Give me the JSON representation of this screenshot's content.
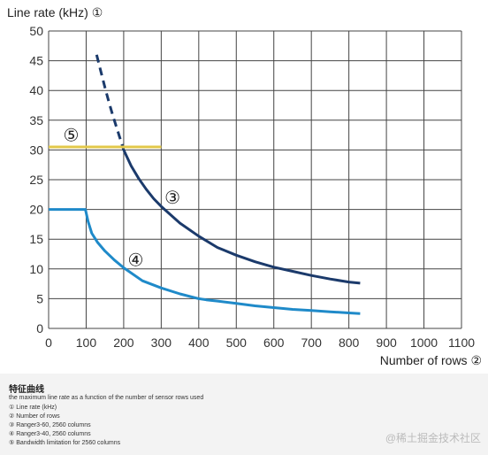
{
  "chart_data": {
    "type": "line",
    "title": "",
    "ylabel": "Line rate (kHz)",
    "ylabel_marker": "①",
    "xlabel": "Number of rows",
    "xlabel_marker": "②",
    "xlim": [
      0,
      1100
    ],
    "ylim": [
      0,
      50
    ],
    "x_ticks": [
      0,
      100,
      200,
      300,
      400,
      500,
      600,
      700,
      800,
      900,
      1000,
      1100
    ],
    "y_ticks": [
      0,
      5,
      10,
      15,
      20,
      25,
      30,
      35,
      40,
      45,
      50
    ],
    "grid": true,
    "series": [
      {
        "name": "③",
        "color": "#1b3a6b",
        "dashed_segment": {
          "x": [
            128,
            140,
            150,
            160,
            170,
            180,
            190,
            200
          ],
          "y": [
            46,
            43,
            40.5,
            38.2,
            36,
            34,
            32,
            30
          ]
        },
        "x": [
          200,
          220,
          240,
          260,
          280,
          300,
          350,
          400,
          450,
          500,
          550,
          600,
          650,
          700,
          750,
          800,
          830
        ],
        "y": [
          30,
          27.3,
          25.2,
          23.4,
          21.8,
          20.5,
          17.7,
          15.5,
          13.6,
          12.3,
          11.2,
          10.3,
          9.6,
          8.9,
          8.3,
          7.8,
          7.6
        ],
        "label_at": [
          330,
          22
        ]
      },
      {
        "name": "④",
        "color": "#1f8ac9",
        "x": [
          0,
          98,
          105,
          115,
          130,
          150,
          175,
          200,
          250,
          300,
          350,
          400,
          420,
          450,
          500,
          550,
          600,
          650,
          700,
          750,
          800,
          830
        ],
        "y": [
          20,
          20,
          18,
          16,
          14.5,
          13,
          11.5,
          10.2,
          8,
          6.8,
          5.8,
          5,
          4.8,
          4.6,
          4.2,
          3.8,
          3.5,
          3.2,
          3,
          2.8,
          2.6,
          2.5
        ],
        "label_at": [
          232,
          11.5
        ]
      },
      {
        "name": "⑤",
        "color": "#e3c84a",
        "x": [
          0,
          300
        ],
        "y": [
          30.5,
          30.5
        ],
        "label_at": [
          60,
          32.5
        ]
      }
    ]
  },
  "caption": {
    "title": "特征曲线",
    "description": "the maximum line rate as a function of the number of sensor rows used",
    "legend": [
      "① Line rate (kHz)",
      "② Number of rows",
      "③ Ranger3-60, 2560 columns",
      "④ Ranger3-40, 2560 columns",
      "⑤ Bandwidth limitation for 2560 columns"
    ],
    "watermark": "@稀土掘金技术社区"
  }
}
